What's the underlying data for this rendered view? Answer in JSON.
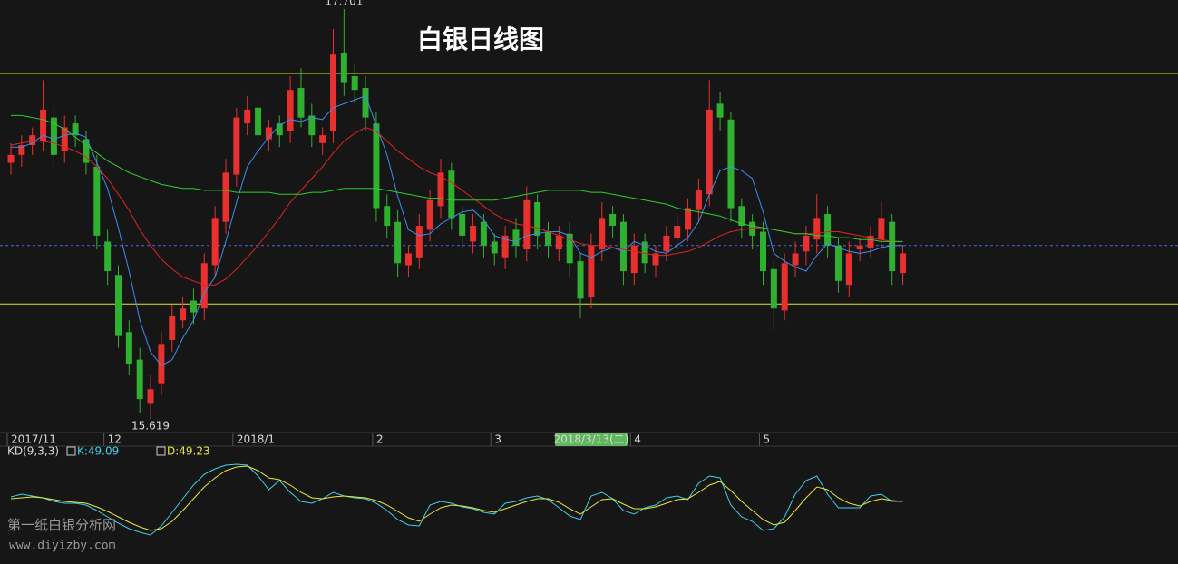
{
  "chart_data": [
    {
      "type": "candlestick",
      "title": "白银日线图",
      "categories": [
        "2017/11",
        null,
        null,
        null,
        null,
        null,
        null,
        null,
        null,
        "12",
        null,
        null,
        null,
        null,
        null,
        null,
        null,
        null,
        null,
        null,
        null,
        "2018/1",
        null,
        null,
        null,
        null,
        null,
        null,
        null,
        null,
        null,
        null,
        null,
        null,
        "2",
        null,
        null,
        null,
        null,
        null,
        null,
        null,
        null,
        null,
        null,
        "3",
        null,
        null,
        null,
        null,
        null,
        null,
        null,
        null,
        "2018/3/13(二)",
        null,
        null,
        null,
        "4",
        null,
        null,
        null,
        null,
        null,
        null,
        null,
        null,
        null,
        null,
        null,
        "5",
        null,
        null,
        null,
        null,
        null,
        null,
        null,
        null,
        null,
        null,
        null,
        null,
        null
      ],
      "highlighted_category": 54,
      "open": [
        16.92,
        16.96,
        17.01,
        17.03,
        17.15,
        16.98,
        17.12,
        17.04,
        16.9,
        16.52,
        16.35,
        16.06,
        15.92,
        15.7,
        15.8,
        16.02,
        16.12,
        16.22,
        16.18,
        16.4,
        16.62,
        16.86,
        17.12,
        17.2,
        17.04,
        17.12,
        17.08,
        17.3,
        17.16,
        17.02,
        17.08,
        17.48,
        17.36,
        17.3,
        17.12,
        16.7,
        16.62,
        16.4,
        16.44,
        16.58,
        16.7,
        16.88,
        16.66,
        16.52,
        16.62,
        16.52,
        16.44,
        16.58,
        16.48,
        16.72,
        16.57,
        16.48,
        16.56,
        16.42,
        16.24,
        16.48,
        16.66,
        16.62,
        16.36,
        16.52,
        16.4,
        16.47,
        16.54,
        16.58,
        16.68,
        16.76,
        17.22,
        17.14,
        16.7,
        16.62,
        16.57,
        16.38,
        16.17,
        16.4,
        16.47,
        16.53,
        16.66,
        16.5,
        16.3,
        16.48,
        16.49,
        16.53,
        16.62,
        16.36
      ],
      "high": [
        17.02,
        17.06,
        17.1,
        17.34,
        17.2,
        17.16,
        17.16,
        17.08,
        16.96,
        16.58,
        16.4,
        16.12,
        15.98,
        15.84,
        16.06,
        16.2,
        16.24,
        16.28,
        16.46,
        16.7,
        16.94,
        17.2,
        17.26,
        17.24,
        17.14,
        17.16,
        17.36,
        17.4,
        17.22,
        17.1,
        17.6,
        17.701,
        17.42,
        17.36,
        17.18,
        16.76,
        16.68,
        16.5,
        16.66,
        16.78,
        16.94,
        16.92,
        16.7,
        16.66,
        16.66,
        16.56,
        16.6,
        16.64,
        16.8,
        16.76,
        16.62,
        16.6,
        16.62,
        16.46,
        16.56,
        16.72,
        16.7,
        16.66,
        16.56,
        16.56,
        16.5,
        16.6,
        16.66,
        16.74,
        16.84,
        17.34,
        17.28,
        17.18,
        16.74,
        16.66,
        16.62,
        16.42,
        16.46,
        16.52,
        16.6,
        16.76,
        16.7,
        16.54,
        16.52,
        16.54,
        16.6,
        16.72,
        16.66,
        16.5
      ],
      "low": [
        16.86,
        16.9,
        16.96,
        16.98,
        16.9,
        16.92,
        17.0,
        16.86,
        16.48,
        16.3,
        15.98,
        15.84,
        15.65,
        15.619,
        15.74,
        15.96,
        16.08,
        16.1,
        16.12,
        16.34,
        16.56,
        16.8,
        17.06,
        17.0,
        16.98,
        17.0,
        17.02,
        17.1,
        17.0,
        16.96,
        17.02,
        17.26,
        17.22,
        17.08,
        16.62,
        16.54,
        16.34,
        16.34,
        16.38,
        16.52,
        16.64,
        16.58,
        16.48,
        16.46,
        16.44,
        16.4,
        16.38,
        16.44,
        16.42,
        16.48,
        16.44,
        16.42,
        16.34,
        16.13,
        16.18,
        16.42,
        16.54,
        16.3,
        16.3,
        16.36,
        16.34,
        16.42,
        16.48,
        16.52,
        16.62,
        16.7,
        17.08,
        16.62,
        16.54,
        16.48,
        16.3,
        16.07,
        16.12,
        16.34,
        16.4,
        16.46,
        16.44,
        16.26,
        16.24,
        16.42,
        16.44,
        16.48,
        16.3,
        16.3
      ],
      "close": [
        16.96,
        17.01,
        17.06,
        17.19,
        16.96,
        17.1,
        17.06,
        16.92,
        16.55,
        16.37,
        16.04,
        15.9,
        15.72,
        15.77,
        16.0,
        16.14,
        16.18,
        16.16,
        16.41,
        16.64,
        16.87,
        17.15,
        17.19,
        17.06,
        17.1,
        17.06,
        17.29,
        17.15,
        17.06,
        17.06,
        17.47,
        17.33,
        17.29,
        17.15,
        16.69,
        16.6,
        16.41,
        16.46,
        16.6,
        16.73,
        16.87,
        16.64,
        16.55,
        16.6,
        16.5,
        16.46,
        16.55,
        16.5,
        16.73,
        16.55,
        16.5,
        16.55,
        16.41,
        16.23,
        16.5,
        16.64,
        16.6,
        16.37,
        16.5,
        16.41,
        16.46,
        16.55,
        16.6,
        16.69,
        16.78,
        17.19,
        17.15,
        16.69,
        16.6,
        16.55,
        16.37,
        16.18,
        16.41,
        16.46,
        16.55,
        16.64,
        16.5,
        16.32,
        16.46,
        16.5,
        16.55,
        16.64,
        16.37,
        16.46
      ],
      "up_color": "#e8302e",
      "down_color": "#2fb12f",
      "series": [
        {
          "color": "#3d8df0",
          "values": [
            17.0,
            17.0,
            17.02,
            17.06,
            17.04,
            17.06,
            17.07,
            17.05,
            16.92,
            16.79,
            16.59,
            16.37,
            16.12,
            15.96,
            15.89,
            15.92,
            16.03,
            16.12,
            16.26,
            16.34,
            16.52,
            16.72,
            16.9,
            16.98,
            17.05,
            17.11,
            17.14,
            17.13,
            17.15,
            17.14,
            17.2,
            17.22,
            17.24,
            17.26,
            17.11,
            16.96,
            16.75,
            16.58,
            16.55,
            16.56,
            16.61,
            16.64,
            16.67,
            16.68,
            16.63,
            16.55,
            16.53,
            16.52,
            16.55,
            16.56,
            16.57,
            16.57,
            16.55,
            16.46,
            16.44,
            16.47,
            16.49,
            16.47,
            16.52,
            16.5,
            16.47,
            16.46,
            16.5,
            16.54,
            16.62,
            16.76,
            16.88,
            16.9,
            16.88,
            16.84,
            16.67,
            16.46,
            16.42,
            16.39,
            16.37,
            16.45,
            16.51,
            16.49,
            16.47,
            16.46,
            16.47,
            16.49,
            16.5,
            16.5
          ]
        },
        {
          "color": "#e02424",
          "values": [
            17.01,
            17.02,
            17.03,
            17.03,
            17.02,
            17.0,
            16.98,
            16.95,
            16.9,
            16.84,
            16.76,
            16.68,
            16.58,
            16.5,
            16.43,
            16.38,
            16.34,
            16.32,
            16.3,
            16.3,
            16.33,
            16.38,
            16.44,
            16.5,
            16.57,
            16.64,
            16.72,
            16.78,
            16.84,
            16.9,
            16.97,
            17.03,
            17.07,
            17.1,
            17.08,
            17.03,
            16.98,
            16.94,
            16.9,
            16.87,
            16.85,
            16.82,
            16.78,
            16.74,
            16.7,
            16.66,
            16.63,
            16.61,
            16.6,
            16.59,
            16.57,
            16.55,
            16.53,
            16.51,
            16.5,
            16.5,
            16.49,
            16.48,
            16.47,
            16.46,
            16.45,
            16.45,
            16.46,
            16.47,
            16.49,
            16.52,
            16.55,
            16.57,
            16.58,
            16.59,
            16.59,
            16.58,
            16.57,
            16.56,
            16.56,
            16.56,
            16.57,
            16.57,
            16.56,
            16.55,
            16.54,
            16.53,
            16.52,
            16.52
          ]
        },
        {
          "color": "#2ecc2e",
          "values": [
            17.16,
            17.16,
            17.15,
            17.14,
            17.12,
            17.09,
            17.05,
            17.01,
            16.97,
            16.93,
            16.9,
            16.87,
            16.85,
            16.83,
            16.81,
            16.8,
            16.79,
            16.79,
            16.78,
            16.78,
            16.78,
            16.77,
            16.77,
            16.77,
            16.77,
            16.76,
            16.76,
            16.76,
            16.77,
            16.77,
            16.78,
            16.79,
            16.79,
            16.79,
            16.79,
            16.78,
            16.77,
            16.76,
            16.75,
            16.74,
            16.74,
            16.73,
            16.73,
            16.73,
            16.73,
            16.73,
            16.74,
            16.75,
            16.76,
            16.77,
            16.78,
            16.78,
            16.78,
            16.78,
            16.77,
            16.77,
            16.76,
            16.75,
            16.74,
            16.73,
            16.72,
            16.71,
            16.69,
            16.68,
            16.67,
            16.66,
            16.65,
            16.63,
            16.61,
            16.6,
            16.59,
            16.58,
            16.57,
            16.56,
            16.56,
            16.55,
            16.55,
            16.54,
            16.54,
            16.53,
            16.53,
            16.52,
            16.52,
            16.52
          ]
        }
      ],
      "hlines": [
        {
          "value": 17.374,
          "color": "#e6e61e"
        },
        {
          "value": 16.203,
          "color": "#e6e61e"
        },
        {
          "value": 16.5,
          "color": "#4a6ad8",
          "dashed": true
        }
      ],
      "annotations": [
        {
          "label": "17.701",
          "value": 17.701,
          "at": "high"
        },
        {
          "label": "15.619",
          "value": 15.619,
          "at": "low"
        }
      ],
      "ylim": [
        15.55,
        17.747
      ]
    },
    {
      "type": "kd",
      "title": "KD(9,3,3)",
      "k_label": "K:49.09",
      "d_label": "D:49.23",
      "series": [
        {
          "color": "#3fd0e8",
          "values": [
            57,
            60,
            58,
            56,
            52,
            50,
            50,
            48,
            42,
            35,
            28,
            22,
            18,
            15,
            25,
            40,
            55,
            70,
            82,
            88,
            92,
            93,
            92,
            80,
            65,
            75,
            62,
            52,
            50,
            55,
            62,
            58,
            56,
            55,
            50,
            42,
            32,
            26,
            25,
            48,
            52,
            50,
            46,
            44,
            40,
            38,
            50,
            52,
            56,
            58,
            54,
            45,
            36,
            32,
            58,
            62,
            55,
            42,
            38,
            45,
            48,
            56,
            58,
            54,
            72,
            80,
            78,
            48,
            35,
            30,
            20,
            22,
            35,
            60,
            75,
            80,
            60,
            45,
            45,
            45,
            58,
            60,
            52,
            52
          ]
        },
        {
          "color": "#e8e83a",
          "values": [
            55,
            56,
            57,
            56,
            54,
            52,
            51,
            50,
            46,
            41,
            35,
            29,
            24,
            20,
            22,
            30,
            42,
            55,
            68,
            78,
            86,
            90,
            91,
            86,
            78,
            76,
            70,
            62,
            56,
            55,
            57,
            58,
            57,
            56,
            53,
            48,
            41,
            34,
            30,
            38,
            45,
            48,
            47,
            45,
            42,
            40,
            44,
            48,
            52,
            55,
            55,
            51,
            44,
            38,
            46,
            54,
            55,
            49,
            44,
            44,
            46,
            50,
            54,
            55,
            62,
            70,
            74,
            64,
            52,
            42,
            32,
            26,
            29,
            42,
            56,
            68,
            65,
            56,
            50,
            47,
            52,
            55,
            53,
            52
          ]
        }
      ],
      "ylim": [
        0,
        100
      ]
    }
  ],
  "watermark": {
    "name": "第一纸白银分析网",
    "url": "www.diyizby.com"
  }
}
